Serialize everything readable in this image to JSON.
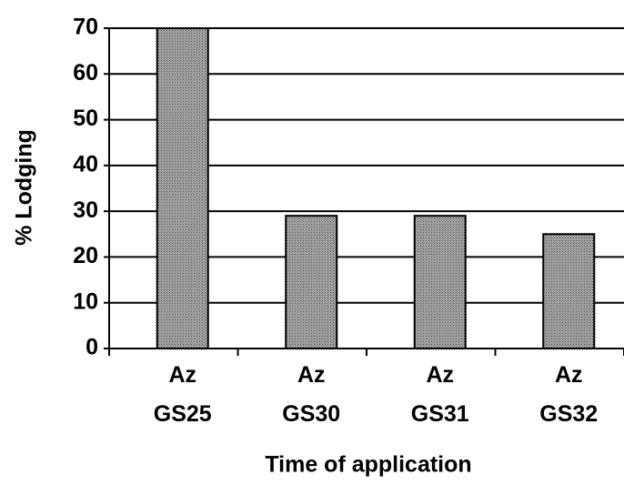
{
  "chart_data": {
    "type": "bar",
    "categories": [
      "Az\nGS25",
      "Az\nGS30",
      "Az\nGS31",
      "Az\nGS32"
    ],
    "values": [
      70,
      29,
      29,
      25
    ],
    "color": "#a9a9a9",
    "y_label": "% Lodging",
    "x_label": "Time of application",
    "ylim": [
      0,
      70
    ],
    "yticks": [
      0,
      10,
      20,
      30,
      40,
      50,
      60,
      70
    ],
    "grid": true
  }
}
